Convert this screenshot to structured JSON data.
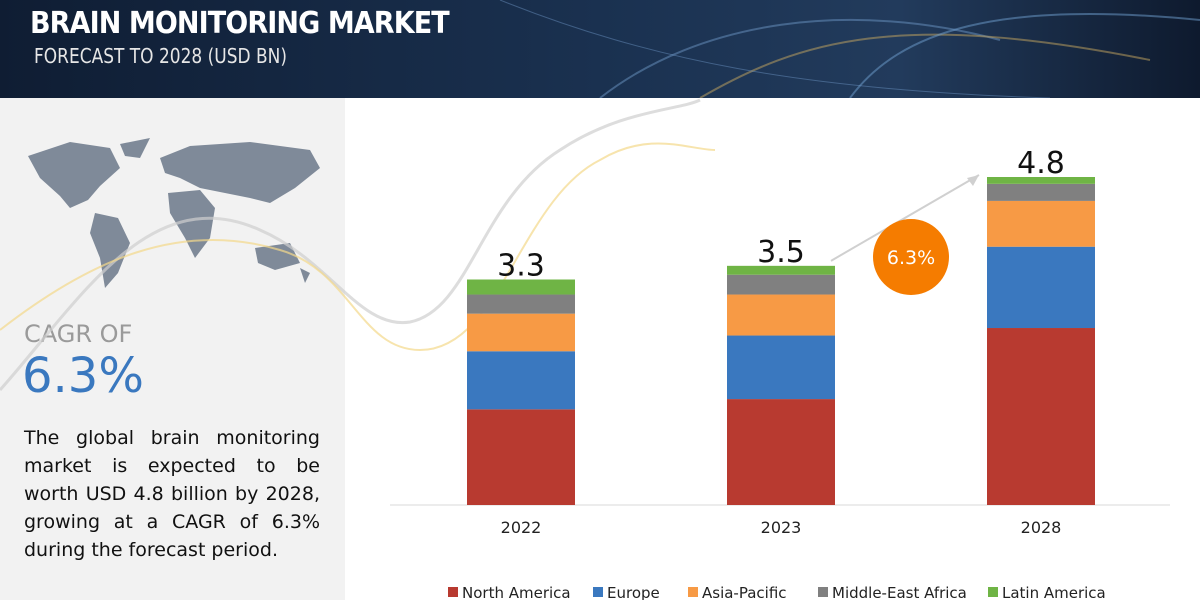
{
  "header": {
    "title": "BRAIN MONITORING MARKET",
    "subtitle": "FORECAST TO 2028 (USD BN)"
  },
  "side_panel": {
    "label": "CAGR OF",
    "value": "6.3%",
    "text": "The global brain monitoring market is expected to be worth USD  4.8 billion by 2028, growing at a CAGR of 6.3% during the forecast period."
  },
  "chart_data": {
    "type": "stacked_bar",
    "categories": [
      "2022",
      "2023",
      "2028"
    ],
    "totals": [
      3.3,
      3.5,
      4.8
    ],
    "annotation": "6.3%",
    "series": [
      {
        "name": "North America",
        "color": "#b83a30",
        "values": [
          1.4,
          1.55,
          2.59
        ]
      },
      {
        "name": "Europe",
        "color": "#3a78bf",
        "values": [
          0.85,
          0.93,
          1.19
        ]
      },
      {
        "name": "Asia-Pacific",
        "color": "#f79a45",
        "values": [
          0.55,
          0.6,
          0.67
        ]
      },
      {
        "name": "Middle-East Africa",
        "color": "#808080",
        "values": [
          0.28,
          0.29,
          0.25
        ]
      },
      {
        "name": "Latin America",
        "color": "#6fb445",
        "values": [
          0.22,
          0.13,
          0.1
        ]
      }
    ]
  }
}
